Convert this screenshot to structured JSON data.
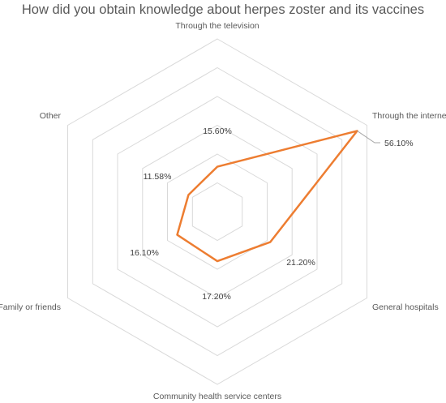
{
  "chart_data": {
    "type": "radar",
    "title": "How did you obtain knowledge about herpes zoster and its vaccines",
    "categories": [
      "Through the television",
      "Through the internet",
      "General hospitals",
      "Community health service centers",
      "Family or friends",
      "Other"
    ],
    "series": [
      {
        "values": [
          15.6,
          56.1,
          21.2,
          17.2,
          16.1,
          11.58
        ]
      }
    ],
    "data_labels": [
      "15.60%",
      "56.10%",
      "21.20%",
      "17.20%",
      "16.10%",
      "11.58%"
    ],
    "rlim": [
      0,
      60
    ],
    "rings": 6,
    "grid": true,
    "legend": "none",
    "colors": {
      "series": "#ED7D31",
      "grid": "#D9D9D9",
      "text": "#595959"
    }
  }
}
